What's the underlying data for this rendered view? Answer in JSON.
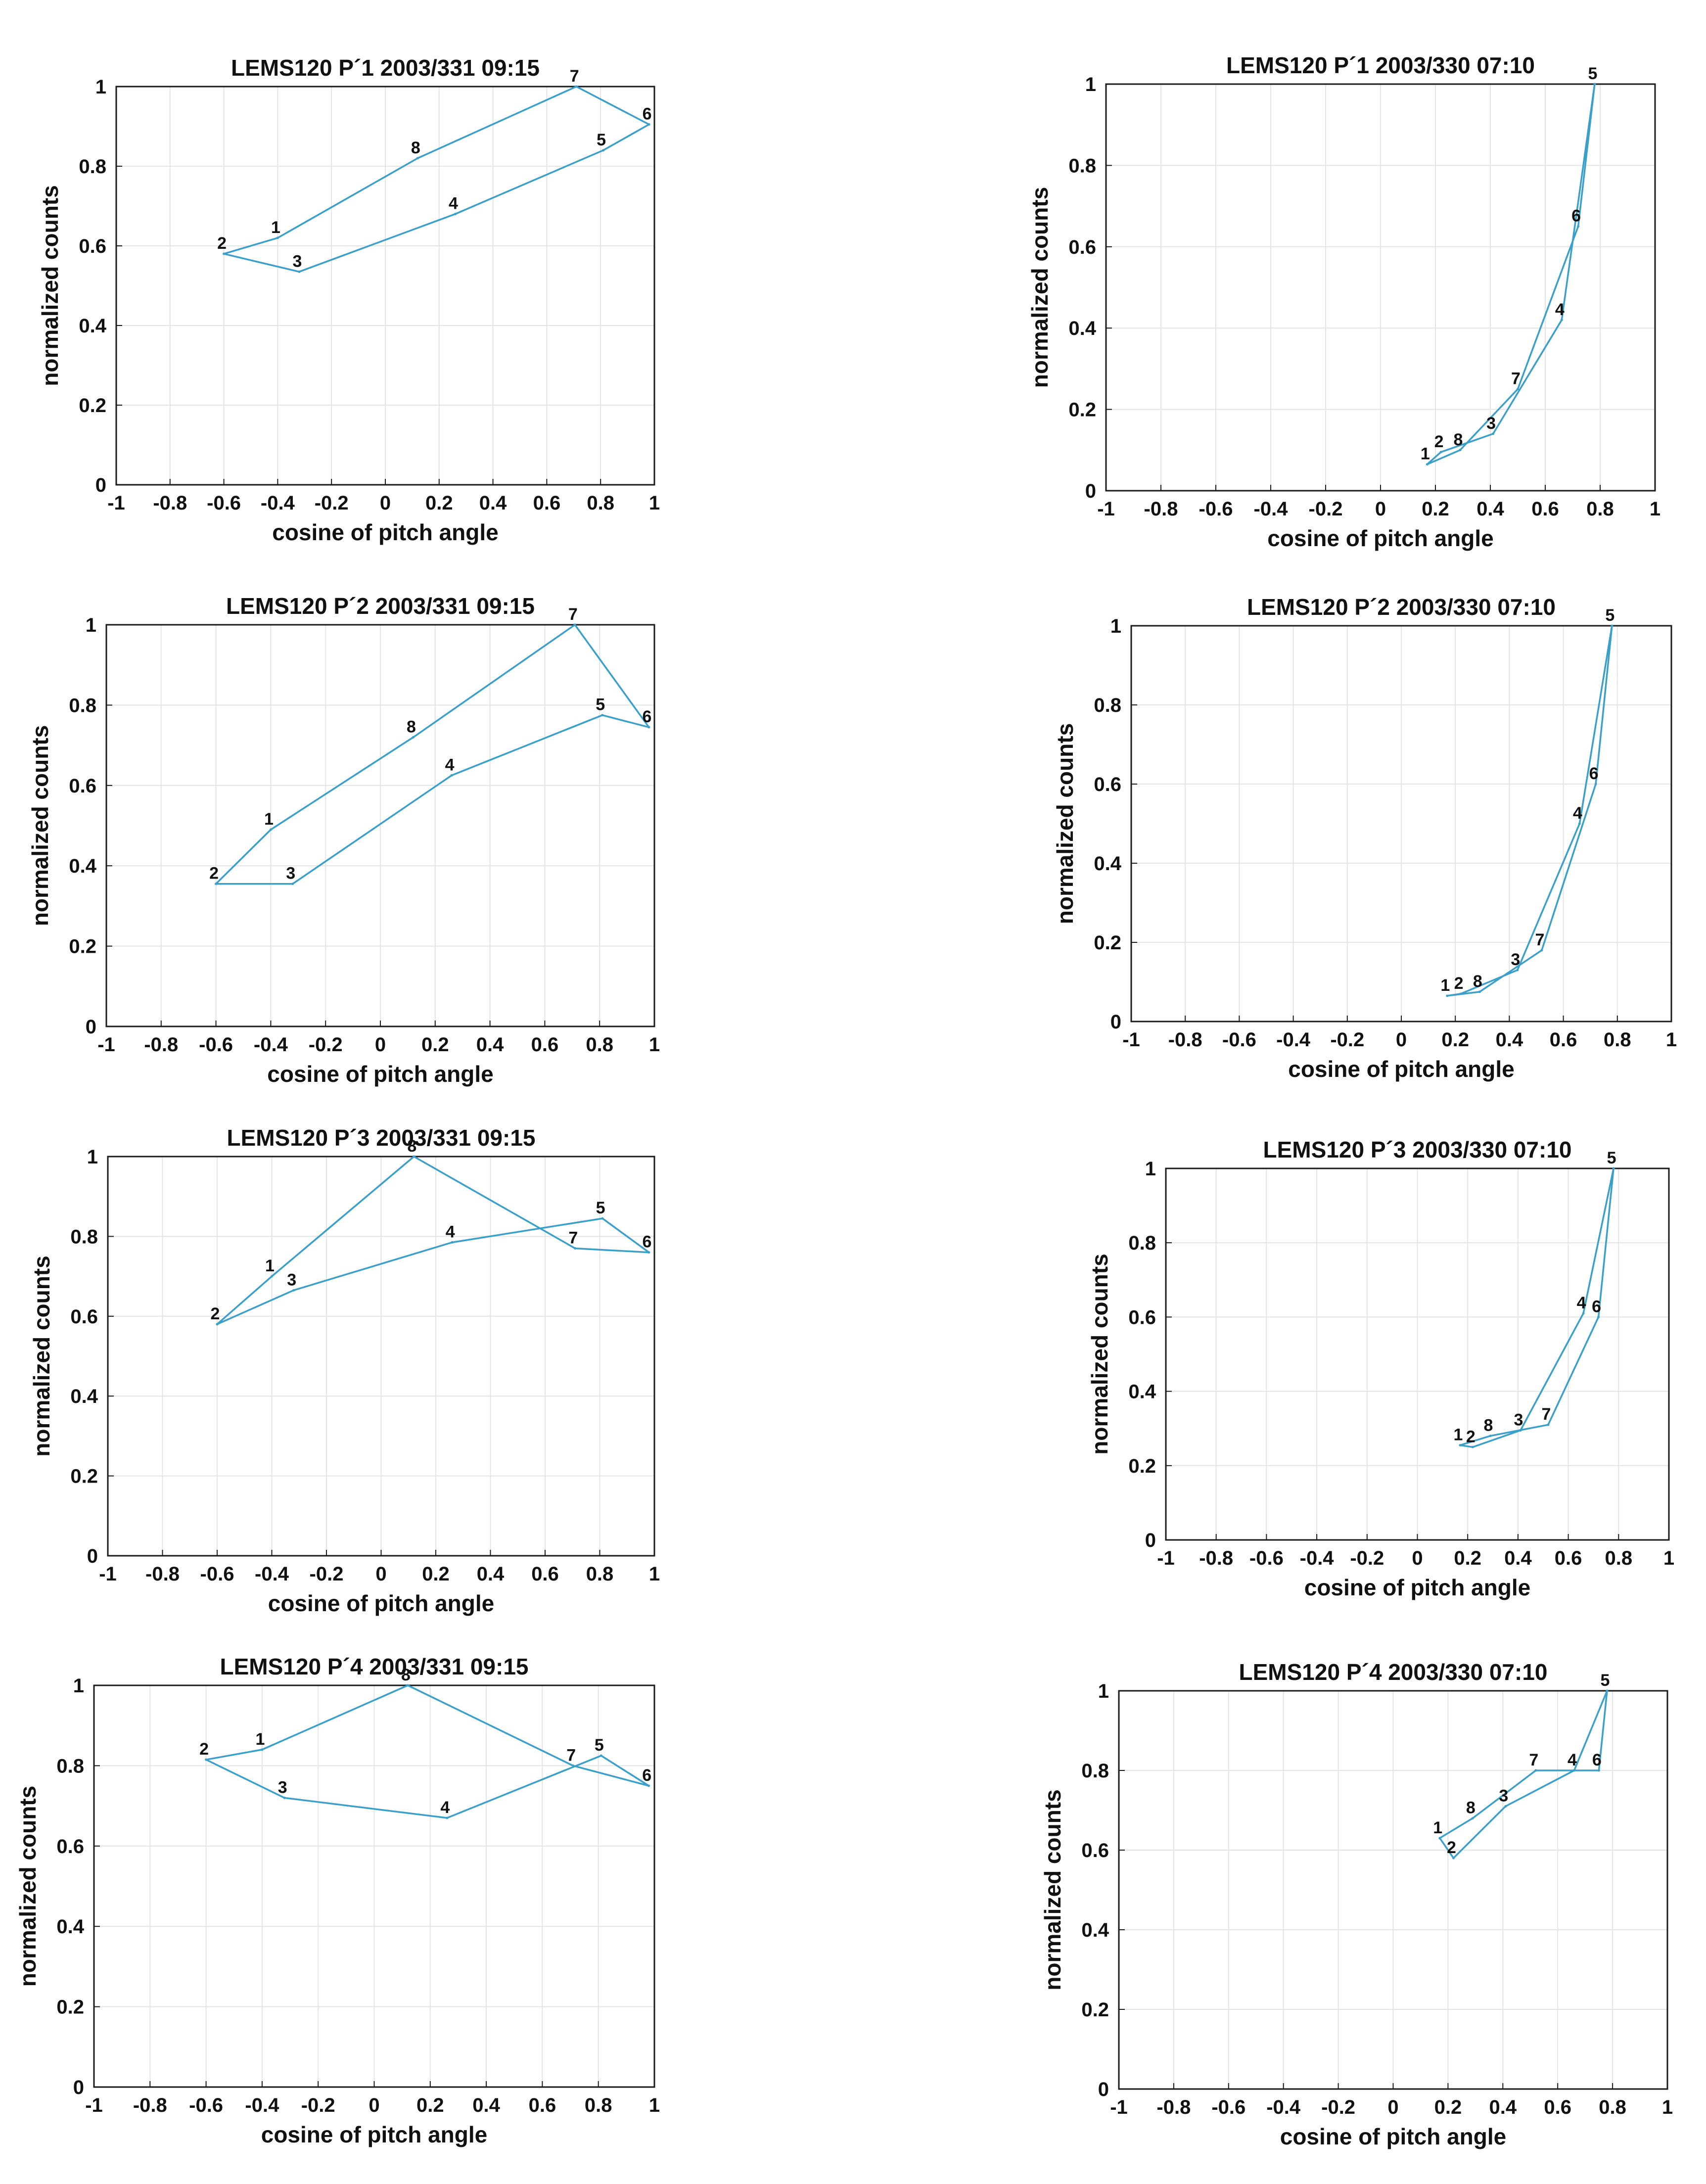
{
  "chart_data": [
    {
      "type": "line",
      "title": "LEMS120 P´1  2003/331 09:15",
      "xlabel": "cosine of pitch angle",
      "ylabel": "normalized counts",
      "xlim": [
        -1,
        1
      ],
      "ylim": [
        0,
        1
      ],
      "grid": true,
      "xticks": [
        "-1",
        "-0.8",
        "-0.6",
        "-0.4",
        "-0.2",
        "0",
        "0.2",
        "0.4",
        "0.6",
        "0.8",
        "1"
      ],
      "yticks": [
        "0",
        "0.2",
        "0.4",
        "0.6",
        "0.8",
        "1"
      ],
      "series": [
        {
          "name": "sectors",
          "labels": [
            "2",
            "3",
            "4",
            "5",
            "6",
            "7",
            "8",
            "1",
            "2"
          ],
          "x": [
            -0.6,
            -0.32,
            0.26,
            0.81,
            0.98,
            0.71,
            0.12,
            -0.4,
            -0.6
          ],
          "y": [
            0.58,
            0.535,
            0.68,
            0.84,
            0.905,
            1.0,
            0.82,
            0.62,
            0.58
          ]
        }
      ]
    },
    {
      "type": "line",
      "title": "LEMS120 P´1  2003/330 07:10",
      "xlabel": "cosine of pitch angle",
      "ylabel": "normalized counts",
      "xlim": [
        -1,
        1
      ],
      "ylim": [
        0,
        1
      ],
      "grid": true,
      "xticks": [
        "-1",
        "-0.8",
        "-0.6",
        "-0.4",
        "-0.2",
        "0",
        "0.2",
        "0.4",
        "0.6",
        "0.8",
        "1"
      ],
      "yticks": [
        "0",
        "0.2",
        "0.4",
        "0.6",
        "0.8",
        "1"
      ],
      "series": [
        {
          "name": "sectors",
          "labels": [
            "1",
            "2",
            "3",
            "4",
            "5",
            "6",
            "7",
            "8",
            "1"
          ],
          "x": [
            0.17,
            0.22,
            0.41,
            0.66,
            0.78,
            0.72,
            0.5,
            0.29,
            0.17
          ],
          "y": [
            0.065,
            0.095,
            0.14,
            0.42,
            1.0,
            0.65,
            0.25,
            0.1,
            0.065
          ]
        }
      ]
    },
    {
      "type": "line",
      "title": "LEMS120 P´2  2003/331 09:15",
      "xlabel": "cosine of pitch angle",
      "ylabel": "normalized counts",
      "xlim": [
        -1,
        1
      ],
      "ylim": [
        0,
        1
      ],
      "grid": true,
      "xticks": [
        "-1",
        "-0.8",
        "-0.6",
        "-0.4",
        "-0.2",
        "0",
        "0.2",
        "0.4",
        "0.6",
        "0.8",
        "1"
      ],
      "yticks": [
        "0",
        "0.2",
        "0.4",
        "0.6",
        "0.8",
        "1"
      ],
      "series": [
        {
          "name": "sectors",
          "labels": [
            "2",
            "3",
            "4",
            "5",
            "6",
            "7",
            "8",
            "1",
            "2"
          ],
          "x": [
            -0.6,
            -0.32,
            0.26,
            0.81,
            0.98,
            0.71,
            0.12,
            -0.4,
            -0.6
          ],
          "y": [
            0.355,
            0.355,
            0.625,
            0.775,
            0.745,
            1.0,
            0.72,
            0.49,
            0.355
          ]
        }
      ]
    },
    {
      "type": "line",
      "title": "LEMS120 P´2  2003/330 07:10",
      "xlabel": "cosine of pitch angle",
      "ylabel": "normalized counts",
      "xlim": [
        -1,
        1
      ],
      "ylim": [
        0,
        1
      ],
      "grid": true,
      "xticks": [
        "-1",
        "-0.8",
        "-0.6",
        "-0.4",
        "-0.2",
        "0",
        "0.2",
        "0.4",
        "0.6",
        "0.8",
        "1"
      ],
      "yticks": [
        "0",
        "0.2",
        "0.4",
        "0.6",
        "0.8",
        "1"
      ],
      "series": [
        {
          "name": "sectors",
          "labels": [
            "1",
            "2",
            "3",
            "4",
            "5",
            "6",
            "7",
            "8",
            "1"
          ],
          "x": [
            0.17,
            0.22,
            0.43,
            0.66,
            0.78,
            0.72,
            0.52,
            0.29,
            0.17
          ],
          "y": [
            0.065,
            0.07,
            0.13,
            0.5,
            1.0,
            0.6,
            0.18,
            0.075,
            0.065
          ]
        }
      ]
    },
    {
      "type": "line",
      "title": "LEMS120 P´3  2003/331 09:15",
      "xlabel": "cosine of pitch angle",
      "ylabel": "normalized counts",
      "xlim": [
        -1,
        1
      ],
      "ylim": [
        0,
        1
      ],
      "grid": true,
      "xticks": [
        "-1",
        "-0.8",
        "-0.6",
        "-0.4",
        "-0.2",
        "0",
        "0.2",
        "0.4",
        "0.6",
        "0.8",
        "1"
      ],
      "yticks": [
        "0",
        "0.2",
        "0.4",
        "0.6",
        "0.8",
        "1"
      ],
      "series": [
        {
          "name": "sectors",
          "labels": [
            "2",
            "3",
            "4",
            "5",
            "6",
            "7",
            "8",
            "1",
            "2"
          ],
          "x": [
            -0.6,
            -0.32,
            0.26,
            0.81,
            0.98,
            0.71,
            0.12,
            -0.4,
            -0.6
          ],
          "y": [
            0.58,
            0.665,
            0.785,
            0.845,
            0.76,
            0.77,
            1.0,
            0.7,
            0.58
          ]
        }
      ]
    },
    {
      "type": "line",
      "title": "LEMS120 P´3  2003/330 07:10",
      "xlabel": "cosine of pitch angle",
      "ylabel": "normalized counts",
      "xlim": [
        -1,
        1
      ],
      "ylim": [
        0,
        1
      ],
      "grid": true,
      "xticks": [
        "-1",
        "-0.8",
        "-0.6",
        "-0.4",
        "-0.2",
        "0",
        "0.2",
        "0.4",
        "0.6",
        "0.8",
        "1"
      ],
      "yticks": [
        "0",
        "0.2",
        "0.4",
        "0.6",
        "0.8",
        "1"
      ],
      "series": [
        {
          "name": "sectors",
          "labels": [
            "1",
            "2",
            "3",
            "4",
            "5",
            "6",
            "7",
            "8",
            "1"
          ],
          "x": [
            0.17,
            0.22,
            0.41,
            0.66,
            0.78,
            0.72,
            0.52,
            0.29,
            0.17
          ],
          "y": [
            0.255,
            0.25,
            0.295,
            0.61,
            1.0,
            0.6,
            0.31,
            0.28,
            0.255
          ]
        }
      ]
    },
    {
      "type": "line",
      "title": "LEMS120 P´4  2003/331 09:15",
      "xlabel": "cosine of pitch angle",
      "ylabel": "normalized counts",
      "xlim": [
        -1,
        1
      ],
      "ylim": [
        0,
        1
      ],
      "grid": true,
      "xticks": [
        "-1",
        "-0.8",
        "-0.6",
        "-0.4",
        "-0.2",
        "0",
        "0.2",
        "0.4",
        "0.6",
        "0.8",
        "1"
      ],
      "yticks": [
        "0",
        "0.2",
        "0.4",
        "0.6",
        "0.8",
        "1"
      ],
      "series": [
        {
          "name": "sectors",
          "labels": [
            "2",
            "3",
            "4",
            "5",
            "6",
            "7",
            "8",
            "1",
            "2"
          ],
          "x": [
            -0.6,
            -0.32,
            0.26,
            0.81,
            0.98,
            0.71,
            0.12,
            -0.4,
            -0.6
          ],
          "y": [
            0.815,
            0.72,
            0.67,
            0.825,
            0.75,
            0.8,
            1.0,
            0.84,
            0.815
          ]
        }
      ]
    },
    {
      "type": "line",
      "title": "LEMS120 P´4  2003/330 07:10",
      "xlabel": "cosine of pitch angle",
      "ylabel": "normalized counts",
      "xlim": [
        -1,
        1
      ],
      "ylim": [
        0,
        1
      ],
      "grid": true,
      "xticks": [
        "-1",
        "-0.8",
        "-0.6",
        "-0.4",
        "-0.2",
        "0",
        "0.2",
        "0.4",
        "0.6",
        "0.8",
        "1"
      ],
      "yticks": [
        "0",
        "0.2",
        "0.4",
        "0.6",
        "0.8",
        "1"
      ],
      "series": [
        {
          "name": "sectors",
          "labels": [
            "1",
            "2",
            "3",
            "4",
            "5",
            "6",
            "7",
            "8",
            "1"
          ],
          "x": [
            0.17,
            0.22,
            0.41,
            0.66,
            0.78,
            0.75,
            0.52,
            0.29,
            0.17
          ],
          "y": [
            0.63,
            0.58,
            0.71,
            0.8,
            1.0,
            0.8,
            0.8,
            0.68,
            0.63
          ]
        }
      ]
    }
  ]
}
